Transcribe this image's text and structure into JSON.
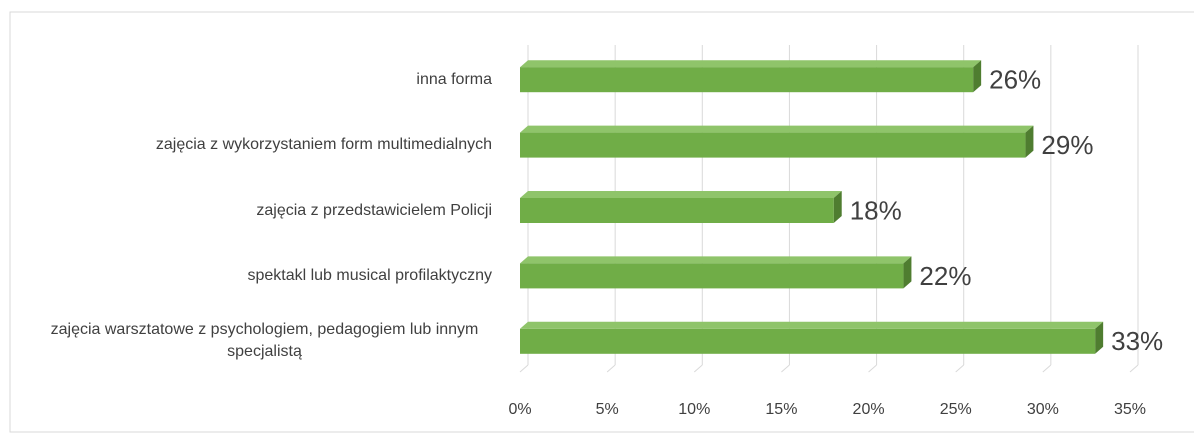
{
  "chart_data": {
    "type": "bar",
    "orientation": "horizontal",
    "categories": [
      "inna forma",
      "zajęcia z wykorzystaniem form multimedialnych",
      "zajęcia z przedstawicielem Policji",
      "spektakl lub musical profilaktyczny",
      "zajęcia warsztatowe z psychologiem, pedagogiem lub innym specjalistą"
    ],
    "values": [
      26,
      29,
      18,
      22,
      33
    ],
    "value_labels": [
      "26%",
      "29%",
      "18%",
      "22%",
      "33%"
    ],
    "color": "#70ad47",
    "xlim": [
      0,
      35
    ],
    "xticks": [
      {
        "value": 0,
        "label": "0%"
      },
      {
        "value": 5,
        "label": "5%"
      },
      {
        "value": 10,
        "label": "10%"
      },
      {
        "value": 15,
        "label": "15%"
      },
      {
        "value": 20,
        "label": "20%"
      },
      {
        "value": 25,
        "label": "25%"
      },
      {
        "value": 30,
        "label": "30%"
      },
      {
        "value": 35,
        "label": "35%"
      }
    ],
    "grid": true
  }
}
